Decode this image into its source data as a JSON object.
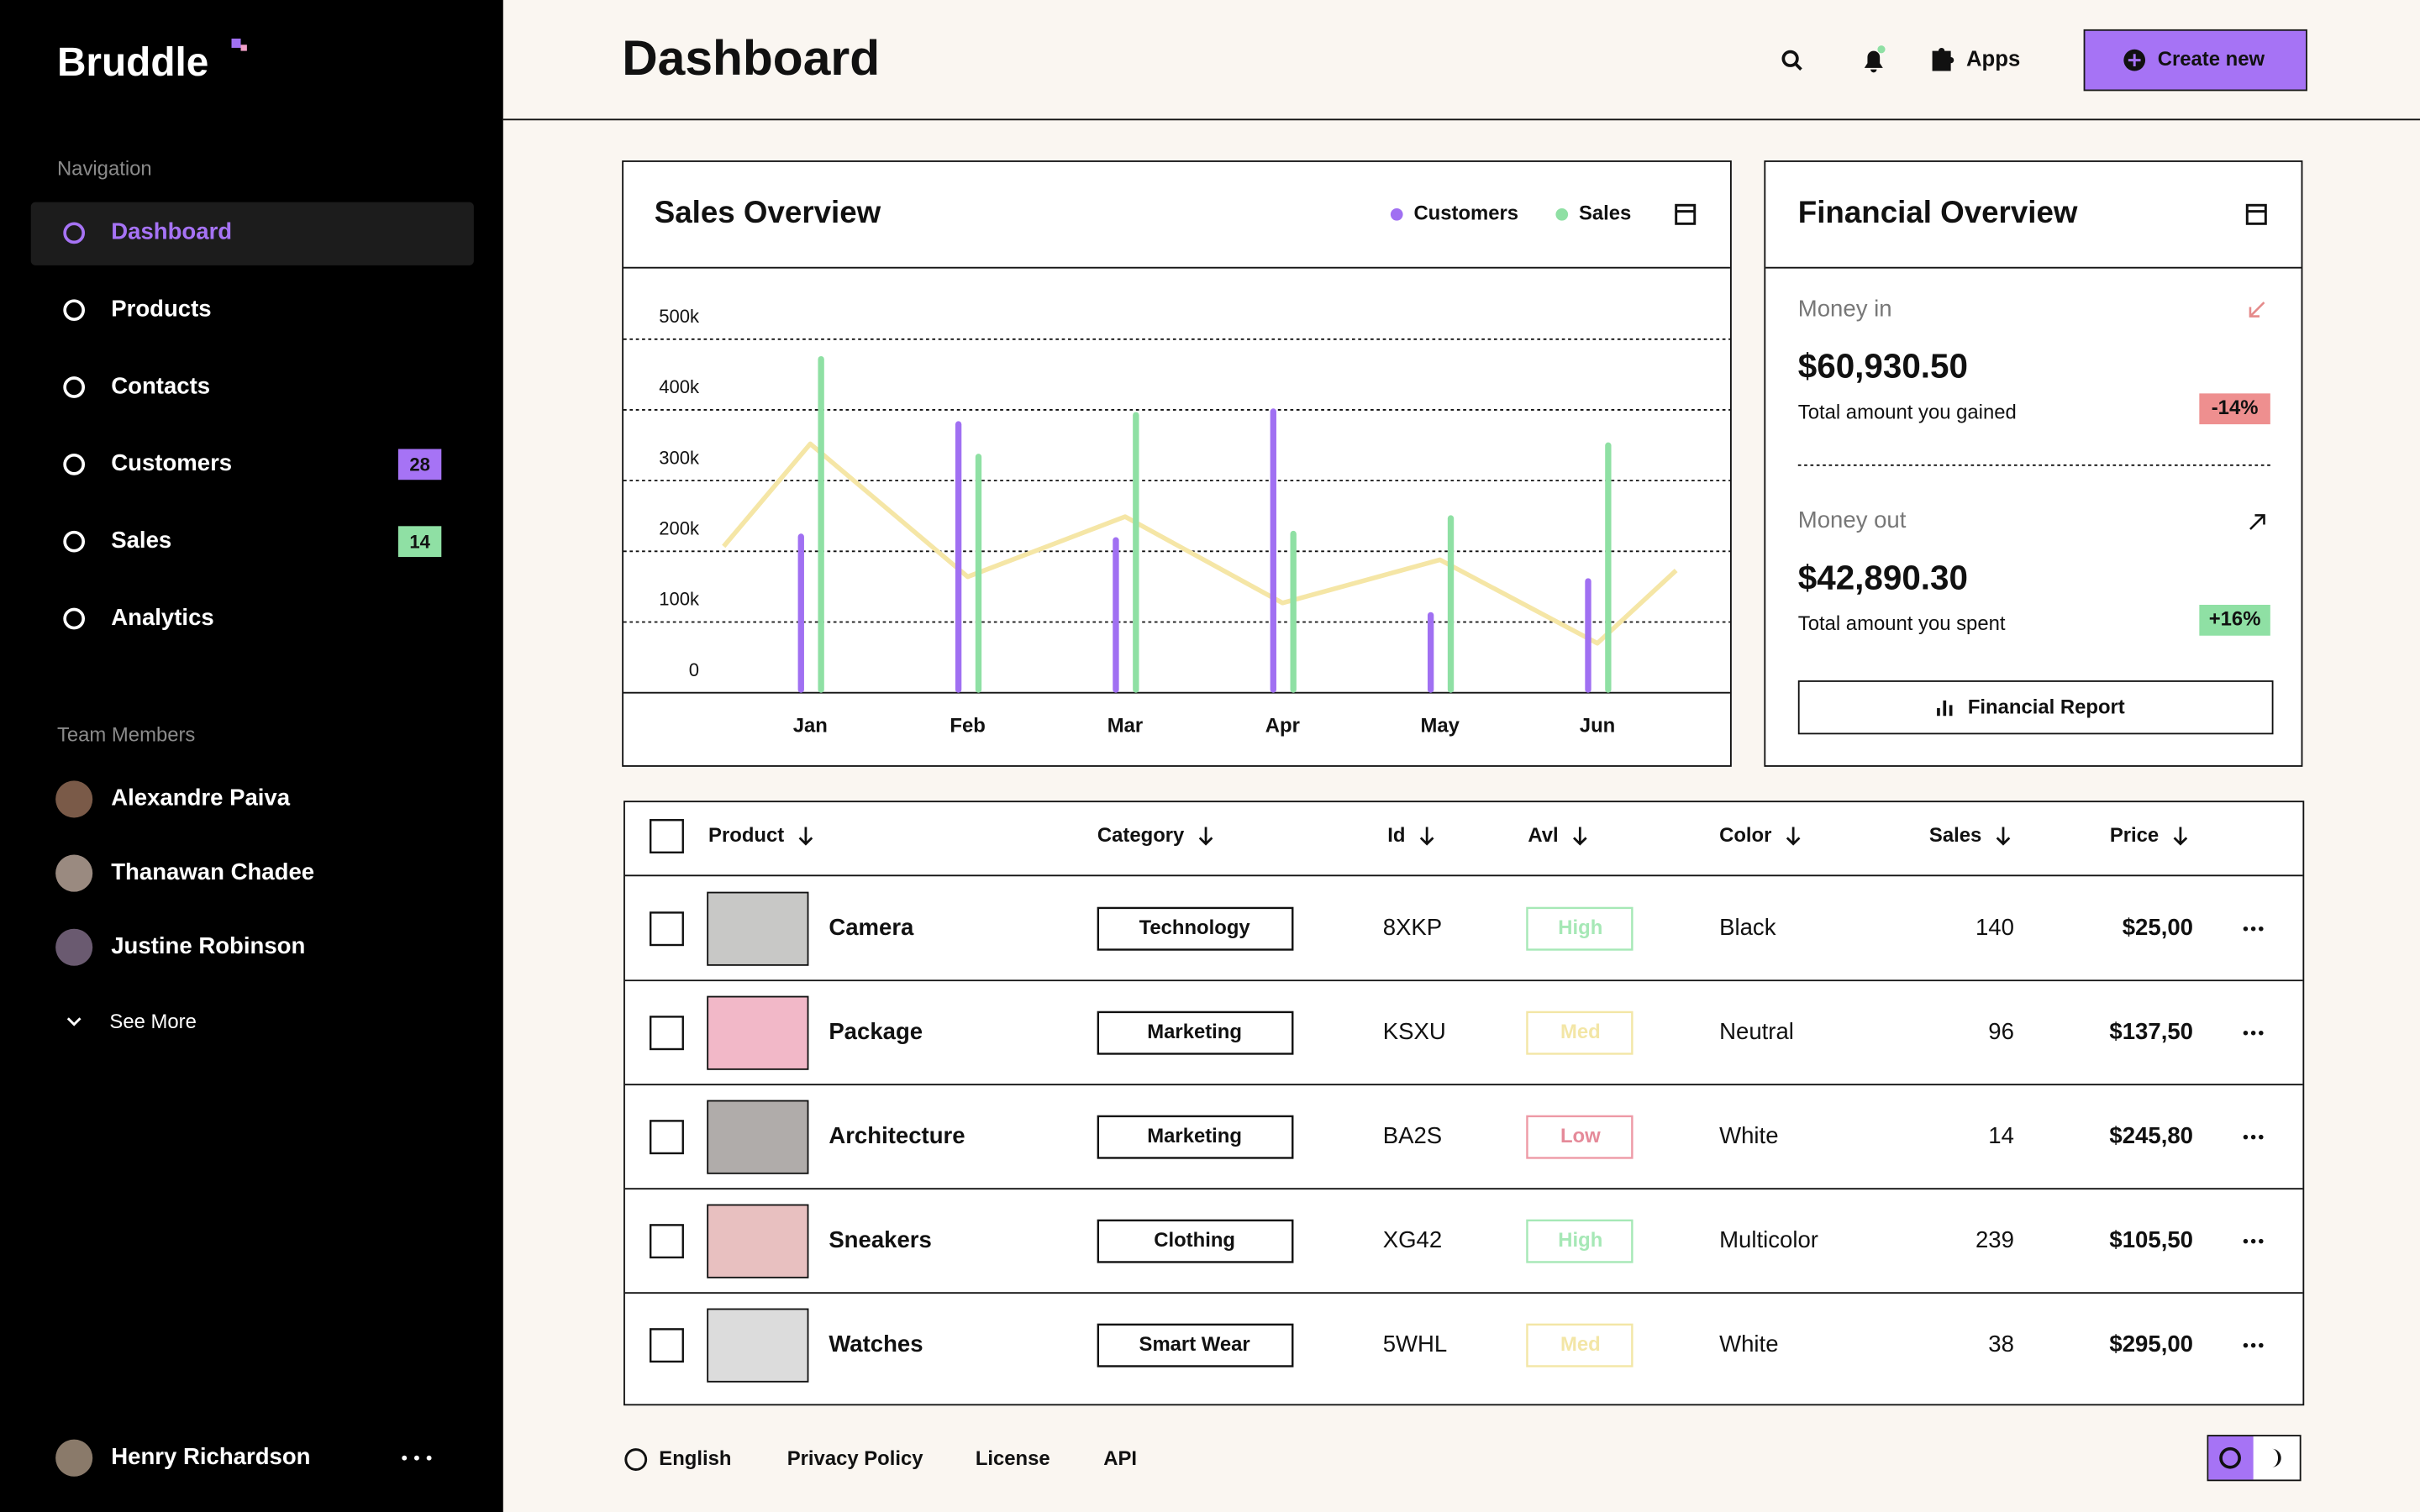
{
  "sidebar": {
    "logo": "Bruddle",
    "nav_heading": "Navigation",
    "nav": [
      {
        "label": "Dashboard"
      },
      {
        "label": "Products"
      },
      {
        "label": "Contacts"
      },
      {
        "label": "Customers",
        "badge": "28"
      },
      {
        "label": "Sales",
        "badge": "14"
      },
      {
        "label": "Analytics"
      }
    ],
    "team_heading": "Team Members",
    "team": [
      "Alexandre Paiva",
      "Thanawan Chadee",
      "Justine Robinson"
    ],
    "see_more": "See More",
    "user": "Henry Richardson"
  },
  "header": {
    "title": "Dashboard",
    "apps": "Apps",
    "create": "Create new"
  },
  "chart_data": {
    "type": "bar",
    "title": "Sales Overview",
    "categories": [
      "Jan",
      "Feb",
      "Mar",
      "Apr",
      "May",
      "Jun"
    ],
    "series": [
      {
        "name": "Customers",
        "color": "#a070f2",
        "values": [
          225000,
          384000,
          220000,
          402000,
          114000,
          162000
        ]
      },
      {
        "name": "Sales",
        "color": "#8fe0a4",
        "values": [
          476000,
          338000,
          397000,
          229000,
          251000,
          354000
        ]
      },
      {
        "type": "line",
        "color": "#f5e6a6",
        "x": [
          -0.55,
          0,
          1,
          2,
          3,
          4,
          5,
          5.5
        ],
        "values": [
          207000,
          352000,
          164000,
          249000,
          127000,
          188000,
          70000,
          173000
        ]
      }
    ],
    "ylim": [
      0,
      600000
    ],
    "yticks": [
      {
        "value": 0,
        "label": "0"
      },
      {
        "value": 100000,
        "label": "100k"
      },
      {
        "value": 200000,
        "label": "200k"
      },
      {
        "value": 300000,
        "label": "300k"
      },
      {
        "value": 400000,
        "label": "400k"
      },
      {
        "value": 500000,
        "label": "500k"
      }
    ],
    "grid": true
  },
  "financial": {
    "title": "Financial Overview",
    "money_in": {
      "label": "Money in",
      "amount": "$60,930.50",
      "note": "Total amount you gained",
      "change": "-14%"
    },
    "money_out": {
      "label": "Money out",
      "amount": "$42,890.30",
      "note": "Total amount you spent",
      "change": "+16%"
    },
    "report": "Financial Report"
  },
  "table": {
    "columns": [
      "Product",
      "Category",
      "Id",
      "Avl",
      "Color",
      "Sales",
      "Price"
    ],
    "rows": [
      [
        "Camera",
        "Technology",
        "8XKP",
        "High",
        "Black",
        "140",
        "$25,00"
      ],
      [
        "Package",
        "Marketing",
        "KSXU",
        "Med",
        "Neutral",
        "96",
        "$137,50"
      ],
      [
        "Architecture",
        "Marketing",
        "BA2S",
        "Low",
        "White",
        "14",
        "$245,80"
      ],
      [
        "Sneakers",
        "Clothing",
        "XG42",
        "High",
        "Multicolor",
        "239",
        "$105,50"
      ],
      [
        "Watches",
        "Smart Wear",
        "5WHL",
        "Med",
        "White",
        "38",
        "$295,00"
      ]
    ]
  },
  "footer": {
    "links": [
      "English",
      "Privacy Policy",
      "License",
      "API"
    ]
  }
}
